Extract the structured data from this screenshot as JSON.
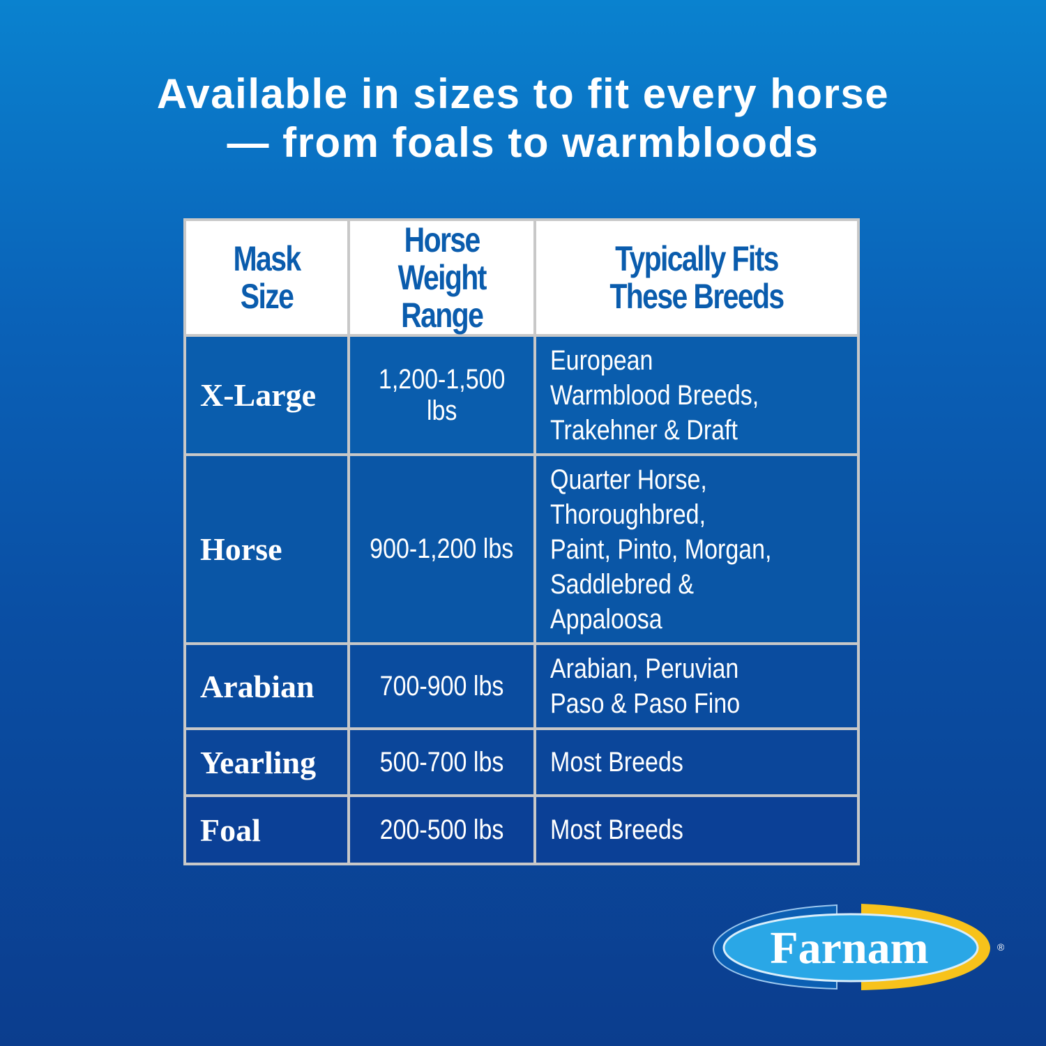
{
  "headline": {
    "line1": "Available in sizes to fit every horse",
    "line2": "— from foals to warmbloods"
  },
  "table": {
    "headers": [
      "Mask Size",
      "Horse Weight Range",
      "Typically Fits These Breeds"
    ],
    "header_lines": [
      [
        "Mask",
        "Size"
      ],
      [
        "Horse",
        "Weight Range"
      ],
      [
        "Typically Fits",
        "These Breeds"
      ]
    ],
    "rows": [
      {
        "size": "X-Large",
        "weight": "1,200-1,500 lbs",
        "breeds": "European\nWarmblood Breeds,\nTrakehner & Draft"
      },
      {
        "size": "Horse",
        "weight": "900-1,200 lbs",
        "breeds": "Quarter Horse,\nThoroughbred,\nPaint, Pinto, Morgan,\nSaddlebred &\nAppaloosa"
      },
      {
        "size": "Arabian",
        "weight": "700-900 lbs",
        "breeds": "Arabian, Peruvian\nPaso & Paso Fino"
      },
      {
        "size": "Yearling",
        "weight": "500-700 lbs",
        "breeds": "Most Breeds"
      },
      {
        "size": "Foal",
        "weight": "200-500 lbs",
        "breeds": "Most Breeds"
      }
    ]
  },
  "logo": {
    "text": "Farnam",
    "mark": "®"
  },
  "colors": {
    "header_text": "#0a5cad",
    "cell_top": "#0a5fae",
    "cell_bottom": "#0b3f96",
    "logo_yellow": "#f7c21b",
    "logo_light_blue": "#2aa7e6"
  }
}
